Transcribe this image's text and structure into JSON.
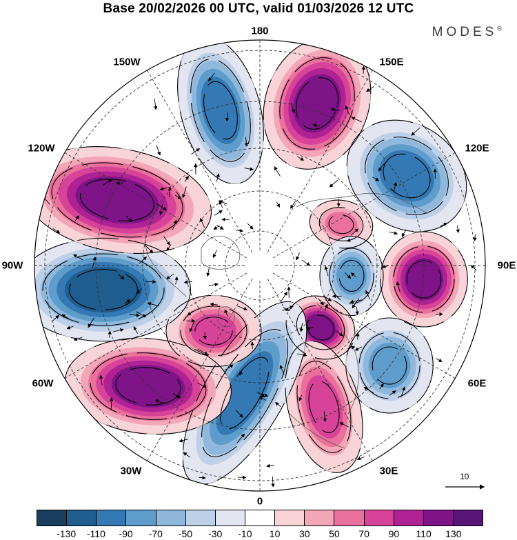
{
  "title": "Base 20/02/2026 00 UTC, valid 01/03/2026 12 UTC",
  "brand": "MODES",
  "brand_mark": "®",
  "longitude_labels": [
    "180",
    "150E",
    "120E",
    "90E",
    "60E",
    "30E",
    "0",
    "30W",
    "60W",
    "90W",
    "120W",
    "150W"
  ],
  "reference_vector": "10",
  "colorbar": {
    "tick_labels": [
      "-130",
      "-110",
      "-90",
      "-70",
      "-50",
      "-30",
      "-10",
      "10",
      "30",
      "50",
      "70",
      "90",
      "110",
      "130"
    ],
    "colors": [
      "#1b3d5e",
      "#1f5d8f",
      "#3479b3",
      "#5d9ccb",
      "#8fb8dc",
      "#bdd0e8",
      "#e3e5f1",
      "#ffffff",
      "#f8d3d8",
      "#f2a6b7",
      "#e9719c",
      "#d8439a",
      "#ae2293",
      "#7e1487",
      "#581575"
    ]
  },
  "map": {
    "projection": "north-polar-stereographic",
    "anomalies": [
      {
        "name": "low-north-pacific",
        "sign": "negative",
        "peak": -90
      },
      {
        "name": "high-bering",
        "sign": "positive",
        "peak": 110
      },
      {
        "name": "low-east-siberia",
        "sign": "negative",
        "peak": -90
      },
      {
        "name": "high-central-siberia",
        "sign": "positive",
        "peak": 50
      },
      {
        "name": "low-kara",
        "sign": "negative",
        "peak": -70
      },
      {
        "name": "high-west-siberia",
        "sign": "positive",
        "peak": 110
      },
      {
        "name": "high-scandinavia",
        "sign": "positive",
        "peak": 110
      },
      {
        "name": "low-caspian",
        "sign": "negative",
        "peak": -70
      },
      {
        "name": "high-europe",
        "sign": "positive",
        "peak": 70
      },
      {
        "name": "low-north-atlantic",
        "sign": "negative",
        "peak": -90
      },
      {
        "name": "high-greenland",
        "sign": "positive",
        "peak": 70
      },
      {
        "name": "high-mid-atlantic",
        "sign": "positive",
        "peak": 110
      },
      {
        "name": "low-hudson-bay",
        "sign": "negative",
        "peak": -110
      },
      {
        "name": "high-alaska-canada",
        "sign": "positive",
        "peak": 110
      }
    ]
  }
}
